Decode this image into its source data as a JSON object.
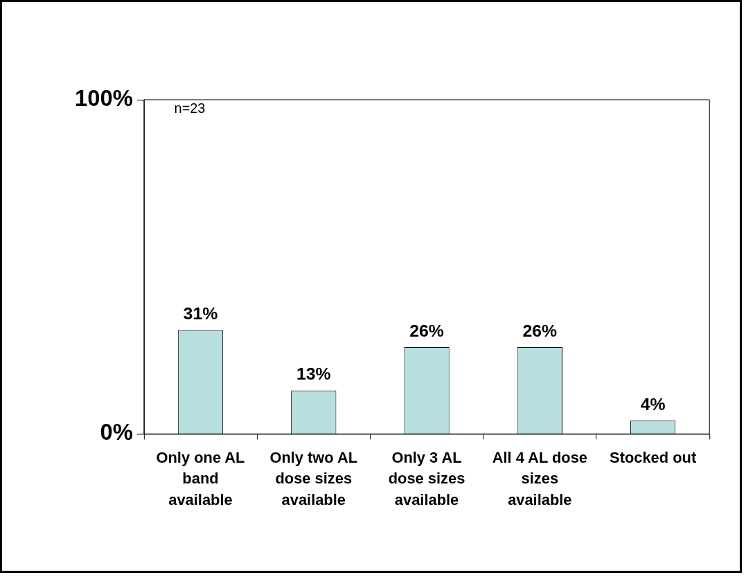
{
  "chart_data": {
    "type": "bar",
    "categories": [
      "Only one AL band available",
      "Only two AL dose sizes available",
      "Only 3 AL dose sizes available",
      "All 4 AL dose sizes available",
      "Stocked out"
    ],
    "values": [
      31,
      13,
      26,
      26,
      4
    ],
    "value_labels": [
      "31%",
      "13%",
      "26%",
      "26%",
      "4%"
    ],
    "color": "#b7dfe0",
    "ylim": [
      0,
      100
    ],
    "yticks": [
      {
        "value": 0,
        "label": "0%"
      },
      {
        "value": 100,
        "label": "100%"
      }
    ],
    "annotations": [
      "n=23"
    ],
    "legend": false
  }
}
